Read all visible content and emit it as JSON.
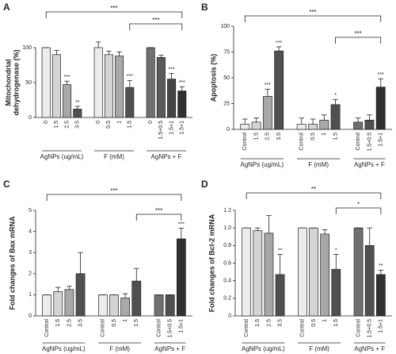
{
  "chart_data": [
    {
      "type": "bar",
      "label": "A",
      "ylabel": [
        "Mitochondrial",
        "dehydrogenase (%)"
      ],
      "ylim": [
        0,
        100
      ],
      "yticks": [
        0,
        50,
        100
      ],
      "groups": [
        {
          "name": "AgNPs (ug/mL)",
          "categories": [
            "0",
            "1.5",
            "2.5",
            "3.5"
          ],
          "values": [
            100,
            90,
            47,
            12
          ],
          "errors": [
            0,
            6,
            5,
            4
          ],
          "significance": [
            null,
            null,
            "***",
            "**"
          ],
          "colors": [
            "#ececec",
            "#d4d4d4",
            "#a8a8a8",
            "#505050"
          ]
        },
        {
          "name": "F (mM)",
          "categories": [
            "0",
            "0.5",
            "1",
            "1.5"
          ],
          "values": [
            100,
            90,
            88,
            43
          ],
          "errors": [
            8,
            5,
            6,
            10
          ],
          "significance": [
            null,
            null,
            null,
            "***"
          ],
          "colors": [
            "#ececec",
            "#d4d4d4",
            "#a8a8a8",
            "#505050"
          ]
        },
        {
          "name": "AgNPs + F",
          "categories": [
            "0",
            "1.5+0.5",
            "1.5+1",
            "1.5+1"
          ],
          "values": [
            100,
            86,
            55,
            38
          ],
          "errors": [
            0,
            3,
            8,
            6
          ],
          "significance": [
            null,
            null,
            "***",
            "***"
          ],
          "colors": [
            "#707070",
            "#5a5a5a",
            "#444444",
            "#303030"
          ]
        }
      ],
      "annotations": [
        "***",
        "***"
      ]
    },
    {
      "type": "bar",
      "label": "B",
      "ylabel": [
        "Apoptosis (%)"
      ],
      "ylim": [
        0,
        100
      ],
      "yticks": [
        0,
        25,
        50,
        75,
        100
      ],
      "groups": [
        {
          "name": "AgNPs (ug/mL)",
          "categories": [
            "Control",
            "1.5",
            "2.5",
            "3.5"
          ],
          "values": [
            5,
            7,
            32,
            76
          ],
          "errors": [
            5,
            4,
            7,
            4
          ],
          "significance": [
            null,
            null,
            "***",
            "***"
          ],
          "colors": [
            "#ececec",
            "#d4d4d4",
            "#a8a8a8",
            "#505050"
          ]
        },
        {
          "name": "F (mM)",
          "categories": [
            "Control",
            "0.5",
            "1",
            "1.5"
          ],
          "values": [
            5,
            5,
            9,
            24
          ],
          "errors": [
            6,
            5,
            5,
            5
          ],
          "significance": [
            null,
            null,
            null,
            "*"
          ],
          "colors": [
            "#ececec",
            "#d4d4d4",
            "#a8a8a8",
            "#505050"
          ]
        },
        {
          "name": "AgNPs + F",
          "categories": [
            "Control",
            "1.5+0.5",
            "1.5+1"
          ],
          "values": [
            7,
            9,
            41
          ],
          "errors": [
            4,
            5,
            8
          ],
          "significance": [
            null,
            null,
            "***"
          ],
          "colors": [
            "#707070",
            "#505050",
            "#303030"
          ]
        }
      ],
      "annotations": [
        "***",
        "***"
      ]
    },
    {
      "type": "bar",
      "label": "C",
      "ylabel": [
        "Fold changes of Bax mRNA"
      ],
      "ylim": [
        0,
        5
      ],
      "yticks": [
        0,
        1,
        2,
        3,
        4,
        5
      ],
      "groups": [
        {
          "name": "AgNPs (ug/mL)",
          "categories": [
            "Control",
            "1.5",
            "2.5",
            "3.5"
          ],
          "values": [
            1,
            1.15,
            1.25,
            2.0
          ],
          "errors": [
            0,
            0.2,
            0.15,
            1.0
          ],
          "significance": [
            null,
            null,
            null,
            null
          ],
          "colors": [
            "#ececec",
            "#d4d4d4",
            "#a8a8a8",
            "#505050"
          ]
        },
        {
          "name": "F (mM)",
          "categories": [
            "Control",
            "0.5",
            "1",
            "1.5"
          ],
          "values": [
            1,
            1,
            0.85,
            1.65
          ],
          "errors": [
            0,
            0,
            0.2,
            0.6
          ],
          "significance": [
            null,
            null,
            null,
            null
          ],
          "colors": [
            "#ececec",
            "#d4d4d4",
            "#a8a8a8",
            "#505050"
          ]
        },
        {
          "name": "AgNPs + F",
          "categories": [
            "Control",
            "1.5+0.5",
            "1.5+1"
          ],
          "values": [
            1,
            1,
            3.65
          ],
          "errors": [
            0,
            0,
            0.5
          ],
          "significance": [
            null,
            null,
            "***"
          ],
          "colors": [
            "#707070",
            "#505050",
            "#303030"
          ]
        }
      ],
      "annotations": [
        "***",
        "***"
      ]
    },
    {
      "type": "bar",
      "label": "D",
      "ylabel": [
        "Fold changes of Bcl-2 mRNA"
      ],
      "ylim": [
        0,
        1.2
      ],
      "yticks": [
        0,
        0.2,
        0.4,
        0.6,
        0.8,
        {
          "value": 1,
          "label": "1.0"
        },
        1.2
      ],
      "groups": [
        {
          "name": "AgNPs (ug/mL)",
          "categories": [
            "Control",
            "1.5",
            "2.5",
            "3.5"
          ],
          "values": [
            1,
            0.97,
            0.94,
            0.47
          ],
          "errors": [
            0,
            0.03,
            0.2,
            0.23
          ],
          "significance": [
            null,
            null,
            null,
            "**"
          ],
          "colors": [
            "#ececec",
            "#d4d4d4",
            "#a8a8a8",
            "#505050"
          ]
        },
        {
          "name": "F (mM)",
          "categories": [
            "Control",
            "0.5",
            "1",
            "1.5"
          ],
          "values": [
            1,
            1,
            0.93,
            0.53
          ],
          "errors": [
            0,
            0,
            0.05,
            0.17
          ],
          "significance": [
            null,
            null,
            null,
            "*"
          ],
          "colors": [
            "#ececec",
            "#d4d4d4",
            "#a8a8a8",
            "#505050"
          ]
        },
        {
          "name": "AgNPs + F",
          "categories": [
            "Control",
            "1.5+0.5",
            "1.5+1"
          ],
          "values": [
            1,
            0.8,
            0.47
          ],
          "errors": [
            0,
            0.2,
            0.05
          ],
          "significance": [
            null,
            null,
            "**"
          ],
          "colors": [
            "#707070",
            "#505050",
            "#303030"
          ]
        }
      ],
      "annotations": [
        "**",
        "*"
      ]
    }
  ]
}
